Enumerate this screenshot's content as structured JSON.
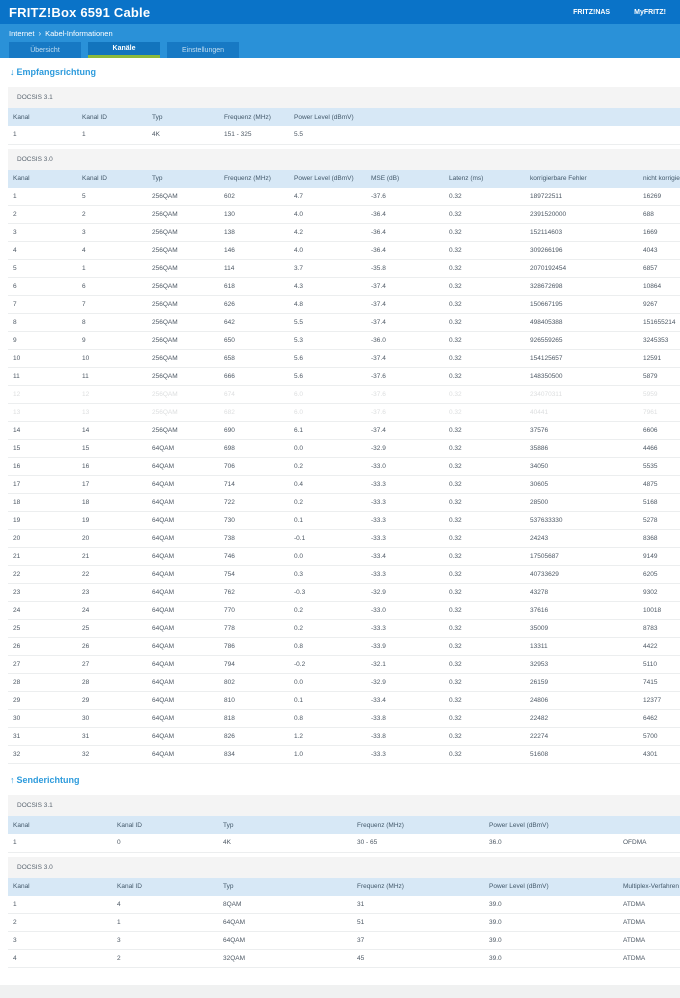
{
  "header": {
    "title": "FRITZ!Box 6591 Cable",
    "links": [
      "FRITZ!NAS",
      "MyFRITZ!"
    ]
  },
  "breadcrumb": {
    "items": [
      "Internet",
      "Kabel-Informationen"
    ],
    "separator": "›"
  },
  "tabs": [
    {
      "label": "Übersicht",
      "active": false
    },
    {
      "label": "Kanäle",
      "active": true
    },
    {
      "label": "Einstellungen",
      "active": false
    }
  ],
  "colors": {
    "topbar": "#0a73c8",
    "subheader": "#2a91d8",
    "tab_active_underline": "#8cb93c",
    "section_title": "#2d9bdc",
    "table_header_bg": "#d7e8f6"
  },
  "sections": {
    "downstream": {
      "arrow": "↓",
      "title": "Empfangsrichtung",
      "docsis31": {
        "label": "DOCSIS 3.1",
        "headers": [
          "Kanal",
          "Kanal ID",
          "Typ",
          "Frequenz (MHz)",
          "Power Level (dBmV)"
        ],
        "rows": [
          [
            "1",
            "1",
            "4K",
            "151 - 325",
            "5.5"
          ]
        ]
      },
      "docsis30": {
        "label": "DOCSIS 3.0",
        "headers": [
          "Kanal",
          "Kanal ID",
          "Typ",
          "Frequenz (MHz)",
          "Power Level (dBmV)",
          "MSE (dB)",
          "Latenz (ms)",
          "korrigierbare Fehler",
          "nicht korrigierbare Fehler"
        ],
        "faded_rows": [
          11,
          12
        ],
        "rows": [
          [
            "1",
            "5",
            "256QAM",
            "602",
            "4.7",
            "-37.6",
            "0.32",
            "189722511",
            "16269"
          ],
          [
            "2",
            "2",
            "256QAM",
            "130",
            "4.0",
            "-36.4",
            "0.32",
            "2391520000",
            "688"
          ],
          [
            "3",
            "3",
            "256QAM",
            "138",
            "4.2",
            "-36.4",
            "0.32",
            "152114603",
            "1669"
          ],
          [
            "4",
            "4",
            "256QAM",
            "146",
            "4.0",
            "-36.4",
            "0.32",
            "309266196",
            "4043"
          ],
          [
            "5",
            "1",
            "256QAM",
            "114",
            "3.7",
            "-35.8",
            "0.32",
            "2070192454",
            "6857"
          ],
          [
            "6",
            "6",
            "256QAM",
            "618",
            "4.3",
            "-37.4",
            "0.32",
            "328672698",
            "10864"
          ],
          [
            "7",
            "7",
            "256QAM",
            "626",
            "4.8",
            "-37.4",
            "0.32",
            "150667195",
            "9267"
          ],
          [
            "8",
            "8",
            "256QAM",
            "642",
            "5.5",
            "-37.4",
            "0.32",
            "498405388",
            "151655214"
          ],
          [
            "9",
            "9",
            "256QAM",
            "650",
            "5.3",
            "-36.0",
            "0.32",
            "926559265",
            "3245353"
          ],
          [
            "10",
            "10",
            "256QAM",
            "658",
            "5.6",
            "-37.4",
            "0.32",
            "154125657",
            "12591"
          ],
          [
            "11",
            "11",
            "256QAM",
            "666",
            "5.6",
            "-37.6",
            "0.32",
            "148350500",
            "5879"
          ],
          [
            "12",
            "12",
            "256QAM",
            "674",
            "6.0",
            "-37.6",
            "0.32",
            "234070311",
            "5959"
          ],
          [
            "13",
            "13",
            "256QAM",
            "682",
            "6.0",
            "-37.6",
            "0.32",
            "40441",
            "7961"
          ],
          [
            "14",
            "14",
            "256QAM",
            "690",
            "6.1",
            "-37.4",
            "0.32",
            "37576",
            "6606"
          ],
          [
            "15",
            "15",
            "64QAM",
            "698",
            "0.0",
            "-32.9",
            "0.32",
            "35886",
            "4466"
          ],
          [
            "16",
            "16",
            "64QAM",
            "706",
            "0.2",
            "-33.0",
            "0.32",
            "34050",
            "5535"
          ],
          [
            "17",
            "17",
            "64QAM",
            "714",
            "0.4",
            "-33.3",
            "0.32",
            "30605",
            "4875"
          ],
          [
            "18",
            "18",
            "64QAM",
            "722",
            "0.2",
            "-33.3",
            "0.32",
            "28500",
            "5168"
          ],
          [
            "19",
            "19",
            "64QAM",
            "730",
            "0.1",
            "-33.3",
            "0.32",
            "537633330",
            "5278"
          ],
          [
            "20",
            "20",
            "64QAM",
            "738",
            "-0.1",
            "-33.3",
            "0.32",
            "24243",
            "8368"
          ],
          [
            "21",
            "21",
            "64QAM",
            "746",
            "0.0",
            "-33.4",
            "0.32",
            "17505687",
            "9149"
          ],
          [
            "22",
            "22",
            "64QAM",
            "754",
            "0.3",
            "-33.3",
            "0.32",
            "40733629",
            "6205"
          ],
          [
            "23",
            "23",
            "64QAM",
            "762",
            "-0.3",
            "-32.9",
            "0.32",
            "43278",
            "9302"
          ],
          [
            "24",
            "24",
            "64QAM",
            "770",
            "0.2",
            "-33.0",
            "0.32",
            "37616",
            "10018"
          ],
          [
            "25",
            "25",
            "64QAM",
            "778",
            "0.2",
            "-33.3",
            "0.32",
            "35009",
            "8783"
          ],
          [
            "26",
            "26",
            "64QAM",
            "786",
            "0.8",
            "-33.9",
            "0.32",
            "13311",
            "4422"
          ],
          [
            "27",
            "27",
            "64QAM",
            "794",
            "-0.2",
            "-32.1",
            "0.32",
            "32953",
            "5110"
          ],
          [
            "28",
            "28",
            "64QAM",
            "802",
            "0.0",
            "-32.9",
            "0.32",
            "26159",
            "7415"
          ],
          [
            "29",
            "29",
            "64QAM",
            "810",
            "0.1",
            "-33.4",
            "0.32",
            "24806",
            "12377"
          ],
          [
            "30",
            "30",
            "64QAM",
            "818",
            "0.8",
            "-33.8",
            "0.32",
            "22482",
            "6462"
          ],
          [
            "31",
            "31",
            "64QAM",
            "826",
            "1.2",
            "-33.8",
            "0.32",
            "22274",
            "5700"
          ],
          [
            "32",
            "32",
            "64QAM",
            "834",
            "1.0",
            "-33.3",
            "0.32",
            "51608",
            "4301"
          ]
        ]
      }
    },
    "upstream": {
      "arrow": "↑",
      "title": "Senderichtung",
      "docsis31": {
        "label": "DOCSIS 3.1",
        "headers": [
          "Kanal",
          "Kanal ID",
          "Typ",
          "Frequenz (MHz)",
          "Power Level (dBmV)",
          ""
        ],
        "rows": [
          [
            "1",
            "0",
            "4K",
            "30 - 65",
            "36.0",
            "OFDMA"
          ]
        ]
      },
      "docsis30": {
        "label": "DOCSIS 3.0",
        "headers": [
          "Kanal",
          "Kanal ID",
          "Typ",
          "Frequenz (MHz)",
          "Power Level (dBmV)",
          "Multiplex-Verfahren"
        ],
        "rows": [
          [
            "1",
            "4",
            "8QAM",
            "31",
            "39.0",
            "ATDMA"
          ],
          [
            "2",
            "1",
            "64QAM",
            "51",
            "39.0",
            "ATDMA"
          ],
          [
            "3",
            "3",
            "64QAM",
            "37",
            "39.0",
            "ATDMA"
          ],
          [
            "4",
            "2",
            "32QAM",
            "45",
            "39.0",
            "ATDMA"
          ]
        ]
      }
    }
  }
}
